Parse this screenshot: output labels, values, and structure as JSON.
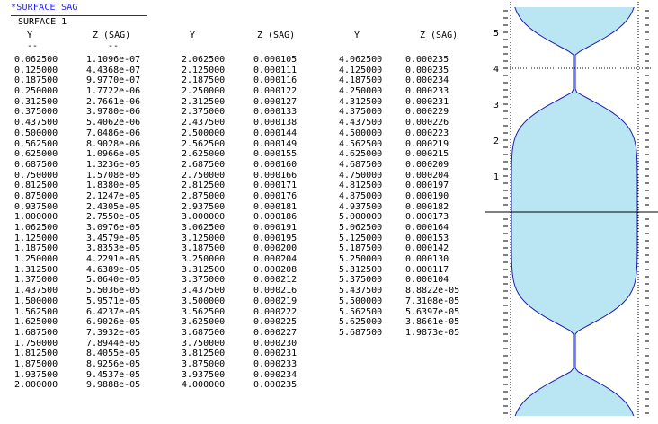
{
  "header": {
    "title": "*SURFACE SAG",
    "surface": "SURFACE 1"
  },
  "columns": {
    "y_label": "Y",
    "z_label": "Z (SAG)",
    "dash": "--"
  },
  "table": {
    "col1": [
      [
        "0.062500",
        "1.1096e-07"
      ],
      [
        "0.125000",
        "4.4368e-07"
      ],
      [
        "0.187500",
        "9.9770e-07"
      ],
      [
        "0.250000",
        "1.7722e-06"
      ],
      [
        "0.312500",
        "2.7661e-06"
      ],
      [
        "0.375000",
        "3.9780e-06"
      ],
      [
        "0.437500",
        "5.4062e-06"
      ],
      [
        "0.500000",
        "7.0486e-06"
      ],
      [
        "0.562500",
        "8.9028e-06"
      ],
      [
        "0.625000",
        "1.0966e-05"
      ],
      [
        "0.687500",
        "1.3236e-05"
      ],
      [
        "0.750000",
        "1.5708e-05"
      ],
      [
        "0.812500",
        "1.8380e-05"
      ],
      [
        "0.875000",
        "2.1247e-05"
      ],
      [
        "0.937500",
        "2.4305e-05"
      ],
      [
        "1.000000",
        "2.7550e-05"
      ],
      [
        "1.062500",
        "3.0976e-05"
      ],
      [
        "1.125000",
        "3.4579e-05"
      ],
      [
        "1.187500",
        "3.8353e-05"
      ],
      [
        "1.250000",
        "4.2291e-05"
      ],
      [
        "1.312500",
        "4.6389e-05"
      ],
      [
        "1.375000",
        "5.0640e-05"
      ],
      [
        "1.437500",
        "5.5036e-05"
      ],
      [
        "1.500000",
        "5.9571e-05"
      ],
      [
        "1.562500",
        "6.4237e-05"
      ],
      [
        "1.625000",
        "6.9026e-05"
      ],
      [
        "1.687500",
        "7.3932e-05"
      ],
      [
        "1.750000",
        "7.8944e-05"
      ],
      [
        "1.812500",
        "8.4055e-05"
      ],
      [
        "1.875000",
        "8.9256e-05"
      ],
      [
        "1.937500",
        "9.4537e-05"
      ],
      [
        "2.000000",
        "9.9888e-05"
      ]
    ],
    "col2": [
      [
        "2.062500",
        "0.000105"
      ],
      [
        "2.125000",
        "0.000111"
      ],
      [
        "2.187500",
        "0.000116"
      ],
      [
        "2.250000",
        "0.000122"
      ],
      [
        "2.312500",
        "0.000127"
      ],
      [
        "2.375000",
        "0.000133"
      ],
      [
        "2.437500",
        "0.000138"
      ],
      [
        "2.500000",
        "0.000144"
      ],
      [
        "2.562500",
        "0.000149"
      ],
      [
        "2.625000",
        "0.000155"
      ],
      [
        "2.687500",
        "0.000160"
      ],
      [
        "2.750000",
        "0.000166"
      ],
      [
        "2.812500",
        "0.000171"
      ],
      [
        "2.875000",
        "0.000176"
      ],
      [
        "2.937500",
        "0.000181"
      ],
      [
        "3.000000",
        "0.000186"
      ],
      [
        "3.062500",
        "0.000191"
      ],
      [
        "3.125000",
        "0.000195"
      ],
      [
        "3.187500",
        "0.000200"
      ],
      [
        "3.250000",
        "0.000204"
      ],
      [
        "3.312500",
        "0.000208"
      ],
      [
        "3.375000",
        "0.000212"
      ],
      [
        "3.437500",
        "0.000216"
      ],
      [
        "3.500000",
        "0.000219"
      ],
      [
        "3.562500",
        "0.000222"
      ],
      [
        "3.625000",
        "0.000225"
      ],
      [
        "3.687500",
        "0.000227"
      ],
      [
        "3.750000",
        "0.000230"
      ],
      [
        "3.812500",
        "0.000231"
      ],
      [
        "3.875000",
        "0.000233"
      ],
      [
        "3.937500",
        "0.000234"
      ],
      [
        "4.000000",
        "0.000235"
      ]
    ],
    "col3": [
      [
        "4.062500",
        "0.000235"
      ],
      [
        "4.125000",
        "0.000235"
      ],
      [
        "4.187500",
        "0.000234"
      ],
      [
        "4.250000",
        "0.000233"
      ],
      [
        "4.312500",
        "0.000231"
      ],
      [
        "4.375000",
        "0.000229"
      ],
      [
        "4.437500",
        "0.000226"
      ],
      [
        "4.500000",
        "0.000223"
      ],
      [
        "4.562500",
        "0.000219"
      ],
      [
        "4.625000",
        "0.000215"
      ],
      [
        "4.687500",
        "0.000209"
      ],
      [
        "4.750000",
        "0.000204"
      ],
      [
        "4.812500",
        "0.000197"
      ],
      [
        "4.875000",
        "0.000190"
      ],
      [
        "4.937500",
        "0.000182"
      ],
      [
        "5.000000",
        "0.000173"
      ],
      [
        "5.062500",
        "0.000164"
      ],
      [
        "5.125000",
        "0.000153"
      ],
      [
        "5.187500",
        "0.000142"
      ],
      [
        "5.250000",
        "0.000130"
      ],
      [
        "5.312500",
        "0.000117"
      ],
      [
        "5.375000",
        "0.000104"
      ],
      [
        "5.437500",
        "8.8822e-05"
      ],
      [
        "5.500000",
        "7.3108e-05"
      ],
      [
        "5.562500",
        "5.6397e-05"
      ],
      [
        "5.625000",
        "3.8661e-05"
      ],
      [
        "5.687500",
        "1.9873e-05"
      ]
    ]
  },
  "plot": {
    "y_ticks": [
      "5",
      "4",
      "3",
      "2",
      "1"
    ],
    "fill_color": "#b9e6f2",
    "outline_color": "#1c1cb4"
  }
}
